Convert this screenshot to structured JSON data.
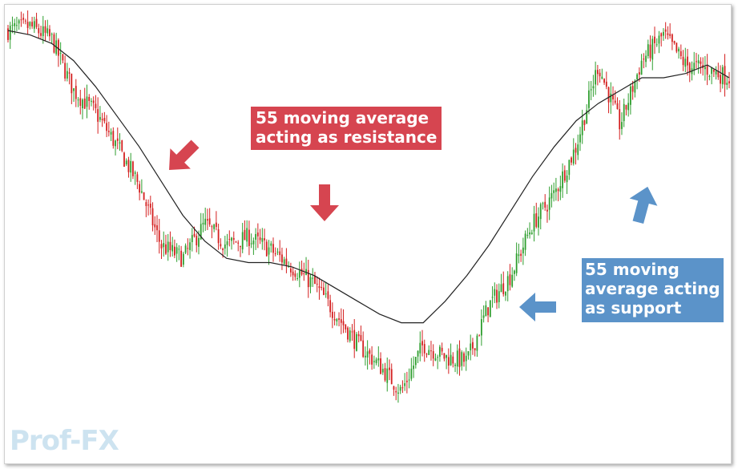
{
  "annotations": {
    "resistance": {
      "lines": [
        "55 moving average",
        "acting as resistance"
      ],
      "color": "#d64550"
    },
    "support": {
      "lines": [
        "55 moving",
        "average acting",
        "as support"
      ],
      "color": "#5b93c9"
    }
  },
  "watermark": "Prof-FX",
  "chart_data": {
    "type": "candlestick",
    "title": "",
    "xlabel": "",
    "ylabel": "",
    "grid": false,
    "legend": "none",
    "ylim": [
      0,
      100
    ],
    "colors": {
      "up": "#2e9e2e",
      "down": "#d42020",
      "ma": "#222222"
    },
    "series": [
      {
        "name": "55 moving average",
        "type": "line",
        "values": [
          97,
          96,
          94,
          90,
          84,
          77,
          70,
          62,
          54,
          48,
          44,
          43,
          43,
          42,
          40,
          37,
          34,
          31,
          29,
          29,
          34,
          40,
          47,
          55,
          63,
          70,
          76,
          80,
          83,
          86,
          86,
          87,
          89,
          86
        ]
      }
    ],
    "price_anchors": [
      [
        0,
        97
      ],
      [
        1,
        98
      ],
      [
        2,
        95
      ],
      [
        3,
        83
      ],
      [
        4,
        78
      ],
      [
        5,
        70
      ],
      [
        6,
        61
      ],
      [
        7,
        47
      ],
      [
        8,
        44
      ],
      [
        9,
        52
      ],
      [
        10,
        47
      ],
      [
        11,
        49
      ],
      [
        12,
        46
      ],
      [
        13,
        42
      ],
      [
        14,
        38
      ],
      [
        15,
        31
      ],
      [
        16,
        24
      ],
      [
        17,
        19
      ],
      [
        18,
        13
      ],
      [
        19,
        24
      ],
      [
        20,
        21
      ],
      [
        21,
        20
      ],
      [
        22,
        33
      ],
      [
        23,
        40
      ],
      [
        24,
        52
      ],
      [
        25,
        59
      ],
      [
        26,
        70
      ],
      [
        27,
        89
      ],
      [
        28,
        75
      ],
      [
        29,
        90
      ],
      [
        30,
        96
      ],
      [
        31,
        89
      ],
      [
        32,
        88
      ],
      [
        33,
        86
      ]
    ],
    "candle_count": 330,
    "volatility": 2.0
  }
}
